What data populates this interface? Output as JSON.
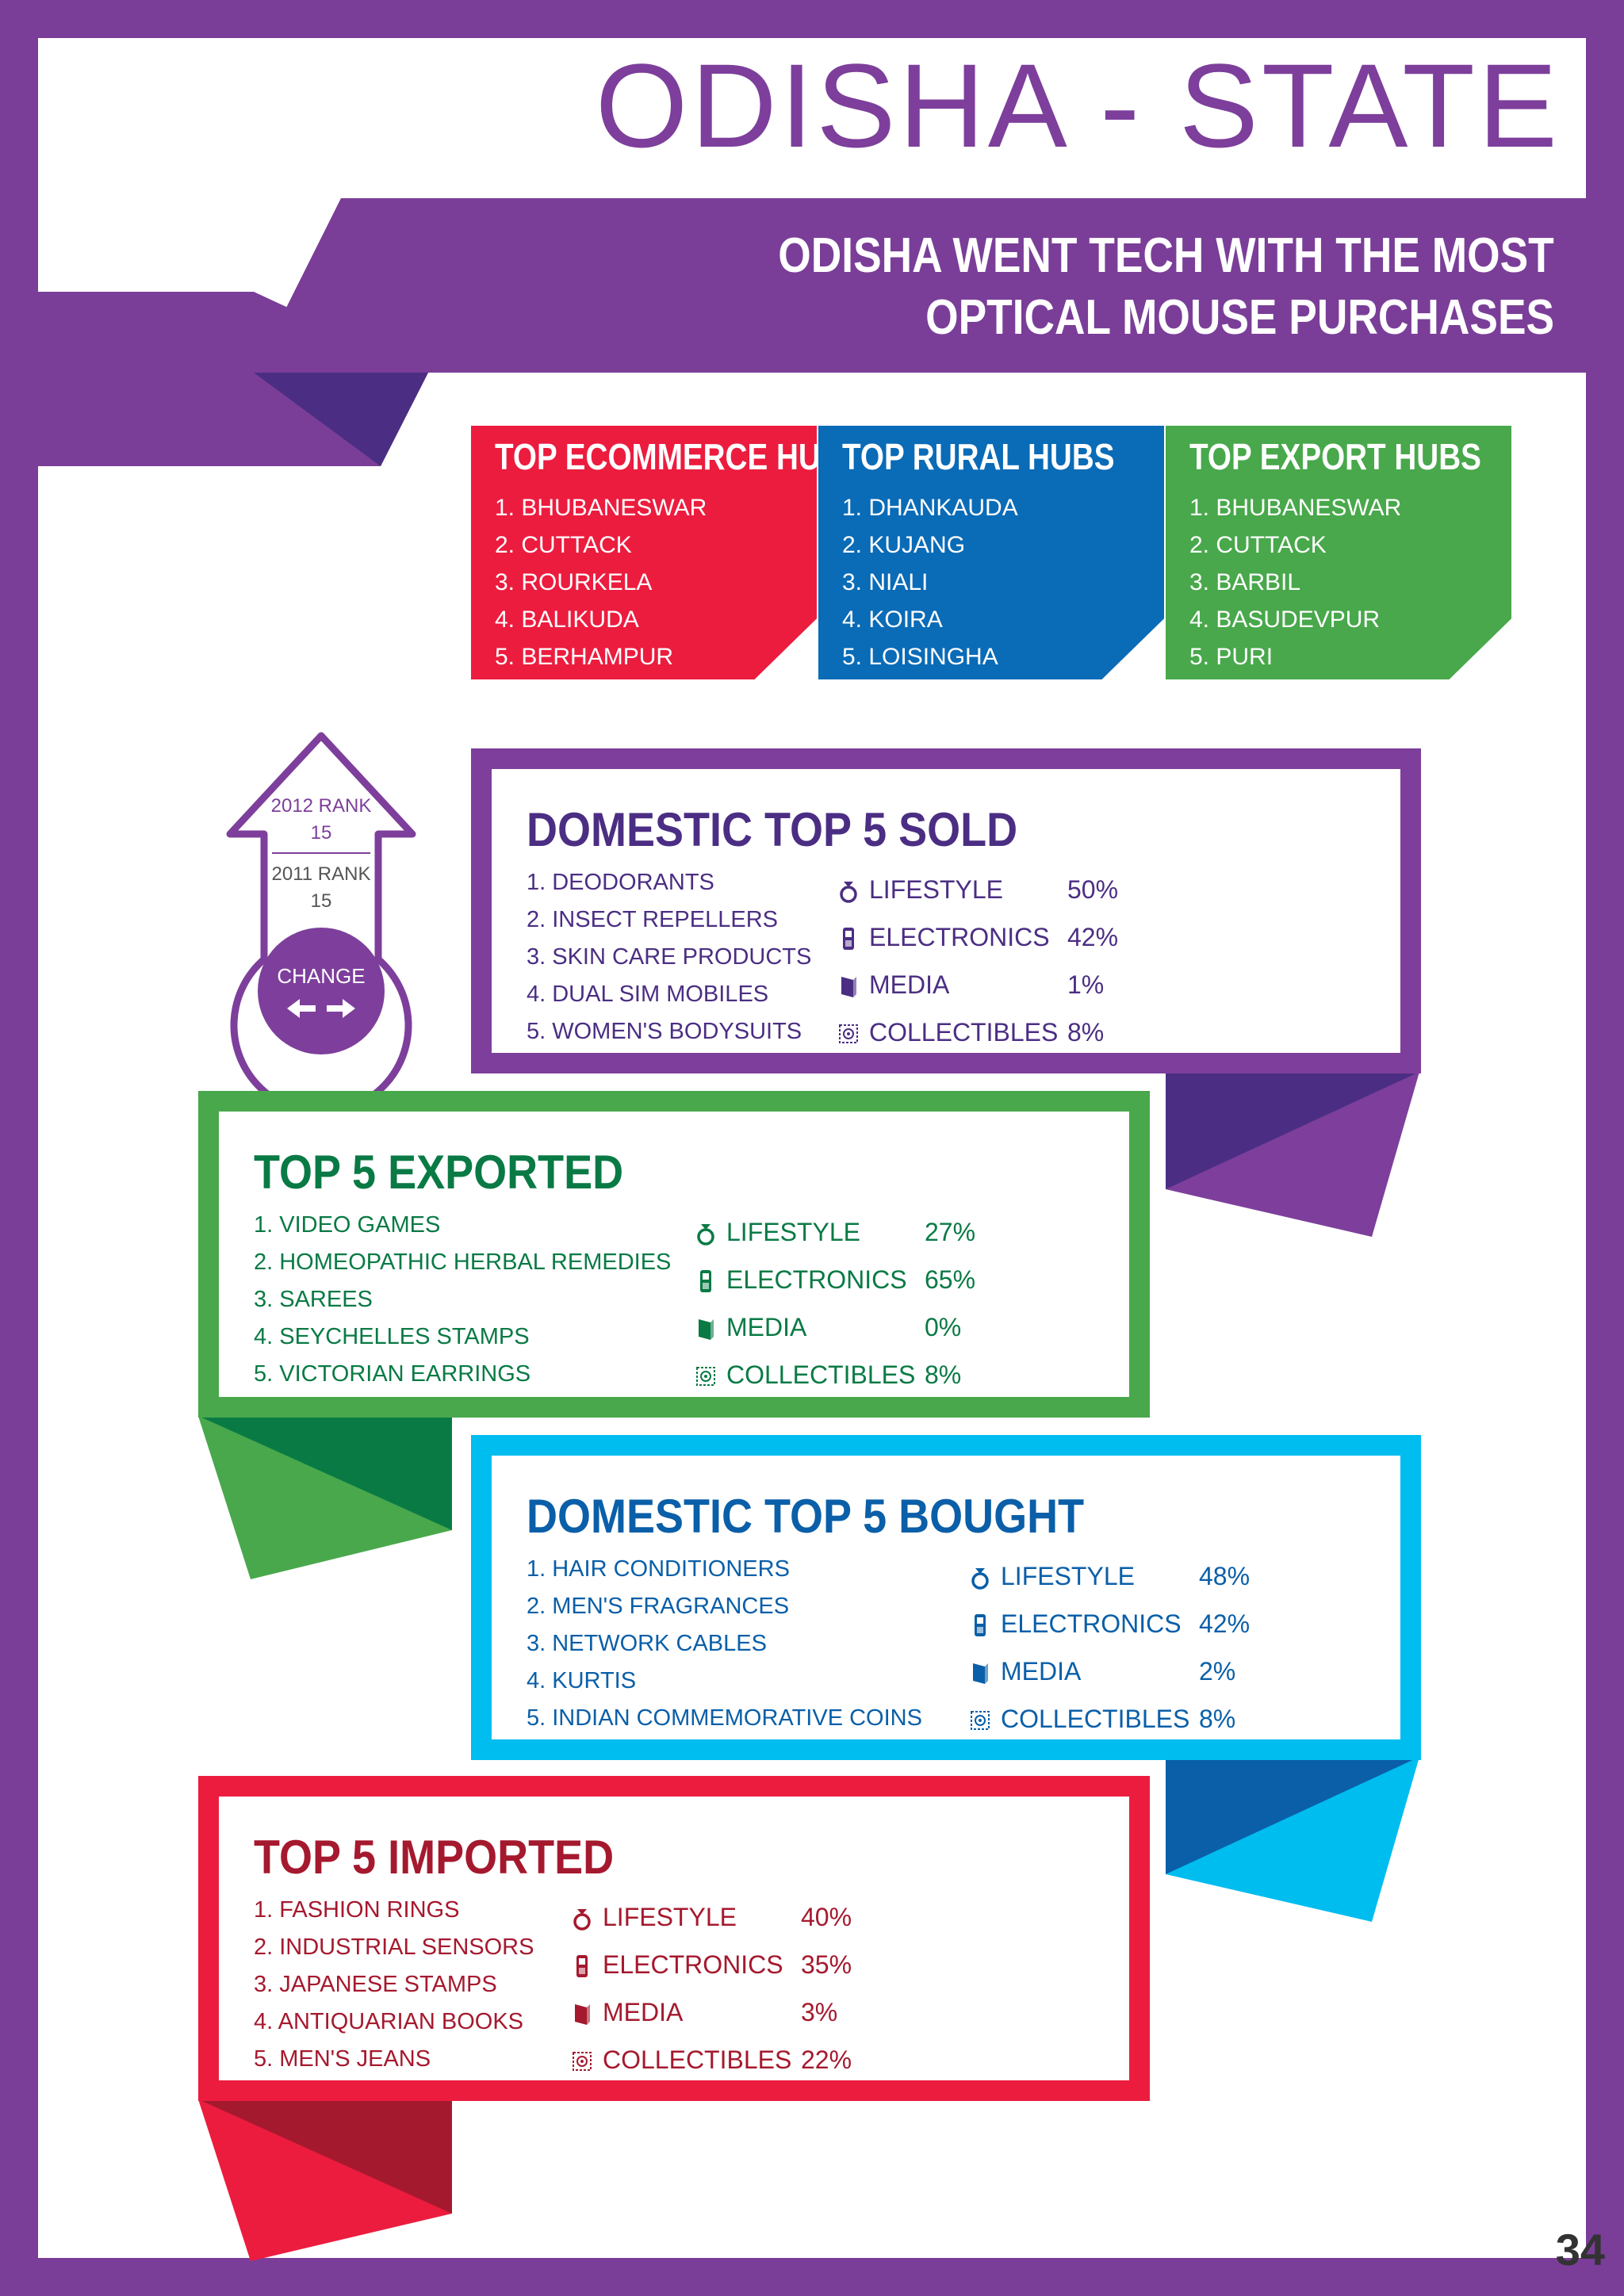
{
  "header": {
    "title": "ODISHA - STATE",
    "subtitle_line1": "ODISHA WENT TECH WITH THE MOST",
    "subtitle_line2": "OPTICAL MOUSE PURCHASES"
  },
  "hubs": [
    {
      "title": "TOP ECOMMERCE HUBS",
      "color": "#ec1c3f",
      "items": [
        "1. BHUBANESWAR",
        "2. CUTTACK",
        "3. ROURKELA",
        "4. BALIKUDA",
        "5. BERHAMPUR"
      ]
    },
    {
      "title": "TOP RURAL HUBS",
      "color": "#0a6bb7",
      "items": [
        "1. DHANKAUDA",
        "2. KUJANG",
        "3. NIALI",
        "4. KOIRA",
        "5. LOISINGHA"
      ]
    },
    {
      "title": "TOP EXPORT HUBS",
      "color": "#48a84b",
      "items": [
        "1. BHUBANESWAR",
        "2. CUTTACK",
        "3. BARBIL",
        "4. BASUDEVPUR",
        "5. PURI"
      ]
    }
  ],
  "rank": {
    "rank_2012_label": "2012 RANK",
    "rank_2012_value": "15",
    "rank_2011_label": "2011 RANK",
    "rank_2011_value": "15",
    "change_label": "CHANGE"
  },
  "sections": {
    "sold": {
      "title": "DOMESTIC TOP 5 SOLD",
      "color": "#7d3f9b",
      "text_color": "#4b2e83",
      "items": [
        "1. DEODORANTS",
        "2. INSECT REPELLERS",
        "3. SKIN CARE PRODUCTS",
        "4. DUAL SIM MOBILES",
        "5. WOMEN'S BODYSUITS"
      ],
      "categories": [
        {
          "name": "LIFESTYLE",
          "pct": "50%",
          "icon": "ring-icon"
        },
        {
          "name": "ELECTRONICS",
          "pct": "42%",
          "icon": "mobile-icon"
        },
        {
          "name": "MEDIA",
          "pct": "1%",
          "icon": "book-icon"
        },
        {
          "name": "COLLECTIBLES",
          "pct": "8%",
          "icon": "stamp-icon"
        }
      ]
    },
    "exported": {
      "title": "TOP 5 EXPORTED",
      "color": "#48a84b",
      "text_color": "#0a7a45",
      "items": [
        "1. VIDEO GAMES",
        "2. HOMEOPATHIC HERBAL REMEDIES",
        "3. SAREES",
        "4. SEYCHELLES STAMPS",
        "5. VICTORIAN EARRINGS"
      ],
      "categories": [
        {
          "name": "LIFESTYLE",
          "pct": "27%",
          "icon": "ring-icon"
        },
        {
          "name": "ELECTRONICS",
          "pct": "65%",
          "icon": "mobile-icon"
        },
        {
          "name": "MEDIA",
          "pct": "0%",
          "icon": "book-icon"
        },
        {
          "name": "COLLECTIBLES",
          "pct": "8%",
          "icon": "stamp-icon"
        }
      ]
    },
    "bought": {
      "title": "DOMESTIC TOP 5 BOUGHT",
      "color": "#00bdf0",
      "text_color": "#0a5fa8",
      "items": [
        "1. HAIR CONDITIONERS",
        "2. MEN'S FRAGRANCES",
        "3. NETWORK CABLES",
        "4. KURTIS",
        "5. INDIAN COMMEMORATIVE COINS"
      ],
      "categories": [
        {
          "name": "LIFESTYLE",
          "pct": "48%",
          "icon": "ring-icon"
        },
        {
          "name": "ELECTRONICS",
          "pct": "42%",
          "icon": "mobile-icon"
        },
        {
          "name": "MEDIA",
          "pct": "2%",
          "icon": "book-icon"
        },
        {
          "name": "COLLECTIBLES",
          "pct": "8%",
          "icon": "stamp-icon"
        }
      ]
    },
    "imported": {
      "title": "TOP 5 IMPORTED",
      "color": "#ec1c3f",
      "text_color": "#a5192e",
      "items": [
        "1. FASHION RINGS",
        "2. INDUSTRIAL SENSORS",
        "3. JAPANESE STAMPS",
        "4. ANTIQUARIAN BOOKS",
        "5. MEN'S JEANS"
      ],
      "categories": [
        {
          "name": "LIFESTYLE",
          "pct": "40%",
          "icon": "ring-icon"
        },
        {
          "name": "ELECTRONICS",
          "pct": "35%",
          "icon": "mobile-icon"
        },
        {
          "name": "MEDIA",
          "pct": "3%",
          "icon": "book-icon"
        },
        {
          "name": "COLLECTIBLES",
          "pct": "22%",
          "icon": "stamp-icon"
        }
      ]
    }
  },
  "page_number": "34"
}
